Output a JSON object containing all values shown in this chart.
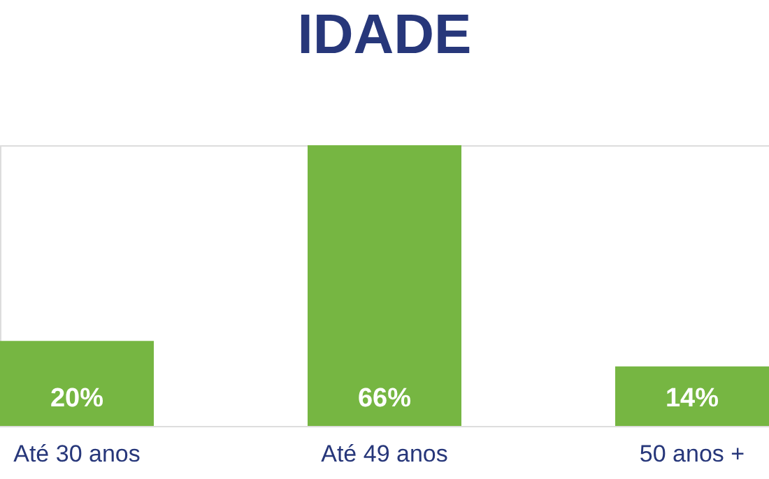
{
  "chart_data": {
    "type": "bar",
    "title": "IDADE",
    "categories": [
      "Até 30 anos",
      "Até 49 anos",
      "50 anos +"
    ],
    "values": [
      20,
      66,
      14
    ],
    "value_labels": [
      "20%",
      "66%",
      "14%"
    ],
    "color": "#76b642"
  }
}
